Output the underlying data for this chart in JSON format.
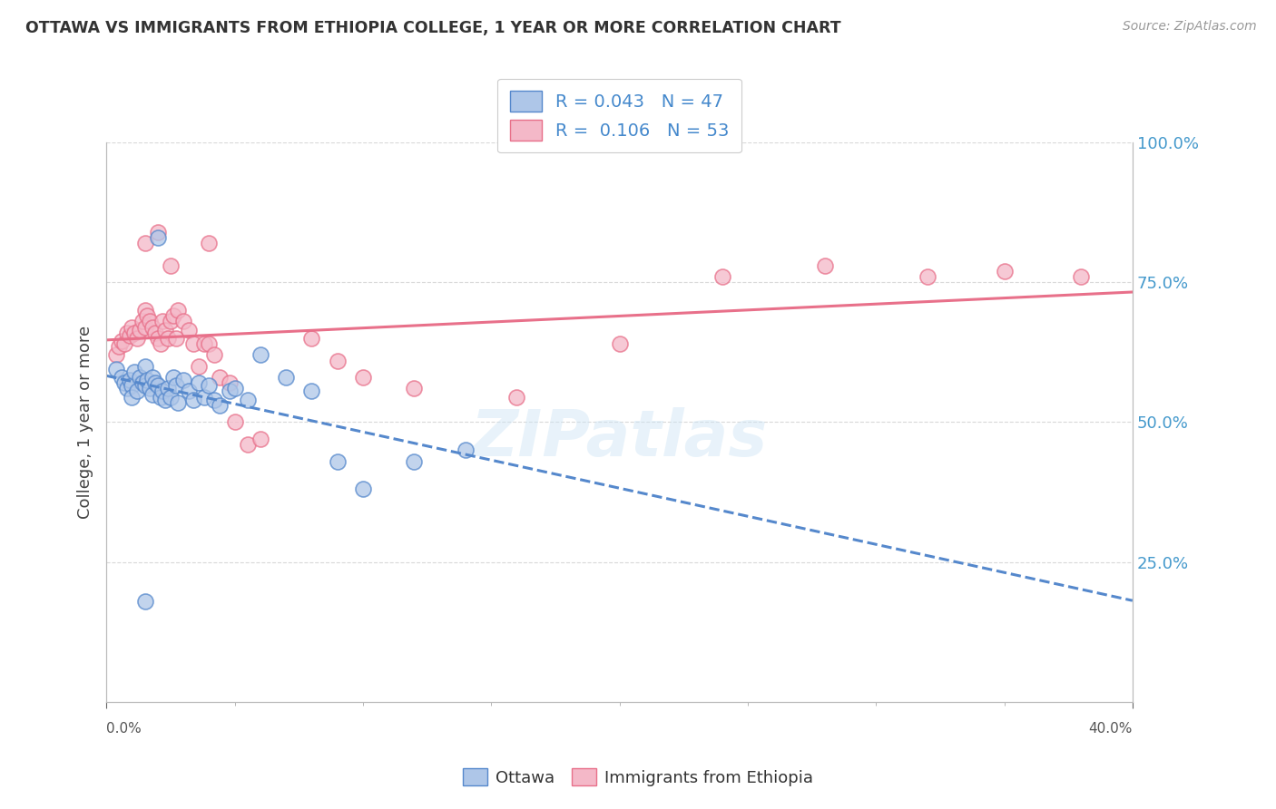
{
  "title": "OTTAWA VS IMMIGRANTS FROM ETHIOPIA COLLEGE, 1 YEAR OR MORE CORRELATION CHART",
  "source_text": "Source: ZipAtlas.com",
  "ylabel": "College, 1 year or more",
  "xmin": 0.0,
  "xmax": 0.4,
  "ymin": 0.0,
  "ymax": 1.0,
  "ottawa_color": "#aec6e8",
  "ottawa_edge_color": "#5588cc",
  "ottawa_line_color": "#5588cc",
  "ethiopia_color": "#f4b8c8",
  "ethiopia_edge_color": "#e8708a",
  "ethiopia_line_color": "#e8708a",
  "ottawa_R": 0.043,
  "ottawa_N": 47,
  "ethiopia_R": 0.106,
  "ethiopia_N": 53,
  "legend_label_ottawa": "Ottawa",
  "legend_label_ethiopia": "Immigrants from Ethiopia",
  "watermark": "ZIPatlas",
  "background_color": "#ffffff",
  "grid_color": "#d0d0d0",
  "title_color": "#333333",
  "legend_text_color": "#4488cc",
  "right_axis_color": "#4499cc",
  "ottawa_scatter_x": [
    0.004,
    0.006,
    0.007,
    0.008,
    0.009,
    0.01,
    0.01,
    0.011,
    0.012,
    0.013,
    0.014,
    0.015,
    0.015,
    0.016,
    0.017,
    0.018,
    0.018,
    0.019,
    0.02,
    0.021,
    0.022,
    0.023,
    0.024,
    0.025,
    0.026,
    0.027,
    0.028,
    0.03,
    0.032,
    0.034,
    0.036,
    0.038,
    0.04,
    0.042,
    0.044,
    0.048,
    0.05,
    0.055,
    0.06,
    0.07,
    0.08,
    0.09,
    0.1,
    0.12,
    0.14,
    0.02,
    0.015
  ],
  "ottawa_scatter_y": [
    0.595,
    0.58,
    0.57,
    0.56,
    0.575,
    0.565,
    0.545,
    0.59,
    0.555,
    0.58,
    0.57,
    0.565,
    0.6,
    0.575,
    0.56,
    0.55,
    0.58,
    0.57,
    0.565,
    0.545,
    0.555,
    0.54,
    0.56,
    0.545,
    0.58,
    0.565,
    0.535,
    0.575,
    0.555,
    0.54,
    0.57,
    0.545,
    0.565,
    0.54,
    0.53,
    0.555,
    0.56,
    0.54,
    0.62,
    0.58,
    0.555,
    0.43,
    0.38,
    0.43,
    0.45,
    0.83,
    0.18
  ],
  "ethiopia_scatter_x": [
    0.004,
    0.005,
    0.006,
    0.007,
    0.008,
    0.009,
    0.01,
    0.011,
    0.012,
    0.013,
    0.014,
    0.015,
    0.015,
    0.016,
    0.017,
    0.018,
    0.019,
    0.02,
    0.021,
    0.022,
    0.023,
    0.024,
    0.025,
    0.026,
    0.027,
    0.028,
    0.03,
    0.032,
    0.034,
    0.036,
    0.038,
    0.04,
    0.042,
    0.044,
    0.048,
    0.05,
    0.055,
    0.06,
    0.08,
    0.09,
    0.1,
    0.12,
    0.16,
    0.2,
    0.24,
    0.28,
    0.32,
    0.35,
    0.38,
    0.04,
    0.02,
    0.015,
    0.025
  ],
  "ethiopia_scatter_y": [
    0.62,
    0.635,
    0.645,
    0.64,
    0.66,
    0.655,
    0.67,
    0.66,
    0.65,
    0.665,
    0.68,
    0.67,
    0.7,
    0.69,
    0.68,
    0.67,
    0.66,
    0.65,
    0.64,
    0.68,
    0.665,
    0.65,
    0.68,
    0.69,
    0.65,
    0.7,
    0.68,
    0.665,
    0.64,
    0.6,
    0.64,
    0.64,
    0.62,
    0.58,
    0.57,
    0.5,
    0.46,
    0.47,
    0.65,
    0.61,
    0.58,
    0.56,
    0.545,
    0.64,
    0.76,
    0.78,
    0.76,
    0.77,
    0.76,
    0.82,
    0.84,
    0.82,
    0.78
  ]
}
